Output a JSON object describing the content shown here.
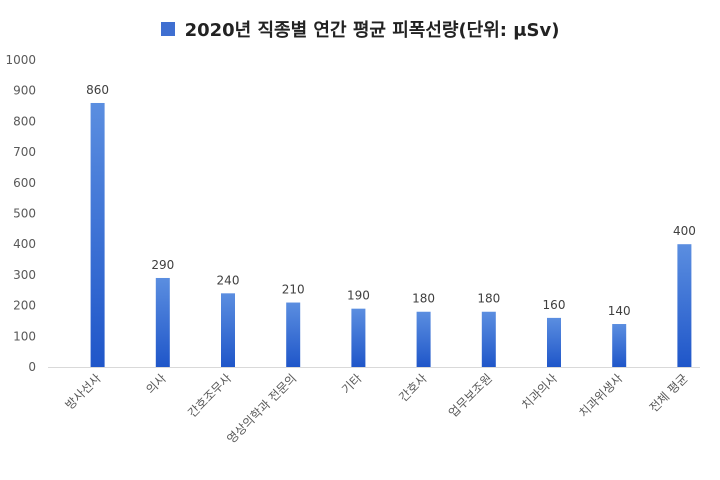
{
  "chart_data": {
    "type": "bar",
    "title": "2020년 직종별 연간 평균 피폭선량(단위: μSv)",
    "categories": [
      "방사선사",
      "의사",
      "간호조무사",
      "영상의학과 전문의",
      "기타",
      "간호사",
      "업무보조원",
      "치과의사",
      "치과위생사",
      "전체 평균"
    ],
    "values": [
      860,
      290,
      240,
      210,
      190,
      180,
      180,
      160,
      140,
      400
    ],
    "value_labels": [
      "860",
      "290",
      "240",
      "210",
      "190",
      "180",
      "180",
      "160",
      "140",
      "400"
    ],
    "ylim": [
      0,
      1000
    ],
    "yticks": [
      0,
      100,
      200,
      300,
      400,
      500,
      600,
      700,
      800,
      900,
      1000
    ],
    "ytick_labels": [
      "0",
      "100",
      "200",
      "300",
      "400",
      "500",
      "600",
      "700",
      "800",
      "900",
      "1000"
    ],
    "xlabel": "",
    "ylabel": "",
    "grid": false,
    "legend_position": "top-center",
    "colors": {
      "bar_top": "#5b8ee0",
      "bar_bottom": "#1f56c9",
      "legend_swatch": "#3f6fd1",
      "axis_line": "#d9d9d9",
      "tick_text": "#595959",
      "value_text": "#404040",
      "category_text": "#595959"
    }
  }
}
